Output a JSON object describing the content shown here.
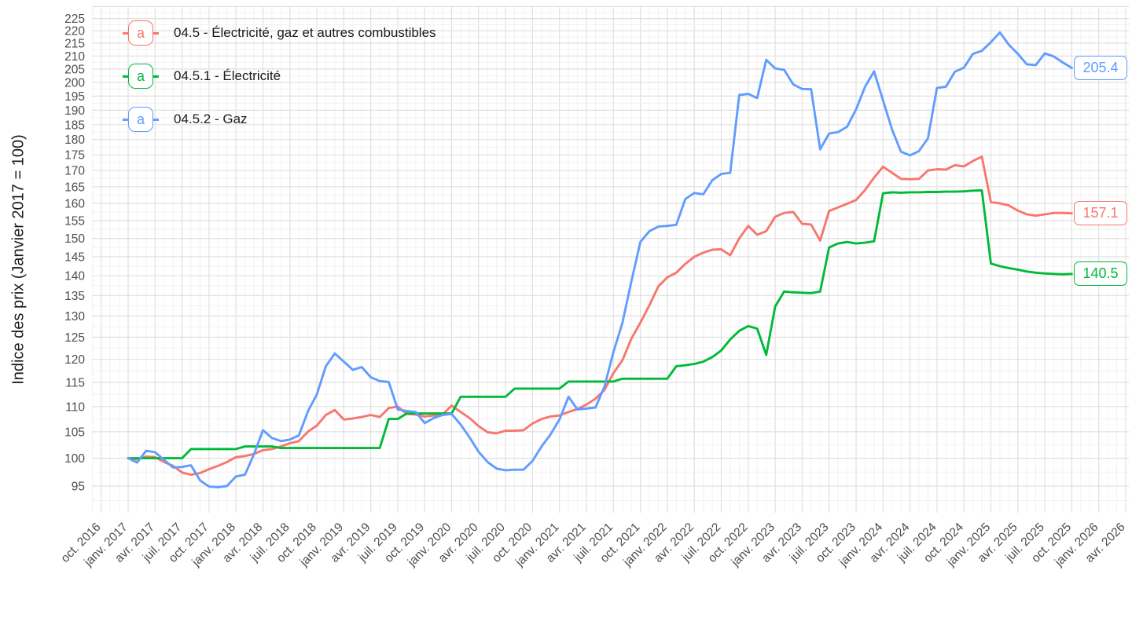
{
  "chart_data": {
    "type": "line",
    "y_scale": "log",
    "grid": "on",
    "legend_position": "top-left-inside",
    "legend_key_letter": "a",
    "ylabel": "Indice des prix (Janvier 2017 = 100)",
    "y_ticks": [
      95,
      100,
      105,
      110,
      115,
      120,
      125,
      130,
      135,
      140,
      145,
      150,
      155,
      160,
      165,
      170,
      175,
      180,
      185,
      190,
      195,
      200,
      205,
      210,
      215,
      220,
      225
    ],
    "ylim": [
      90.6,
      228
    ],
    "x_tick_labels": [
      "oct. 2016",
      "janv. 2017",
      "avr. 2017",
      "juil. 2017",
      "oct. 2017",
      "janv. 2018",
      "avr. 2018",
      "juil. 2018",
      "oct. 2018",
      "janv. 2019",
      "avr. 2019",
      "juil. 2019",
      "oct. 2019",
      "janv. 2020",
      "avr. 2020",
      "juil. 2020",
      "oct. 2020",
      "janv. 2021",
      "avr. 2021",
      "juil. 2021",
      "oct. 2021",
      "janv. 2022",
      "avr. 2022",
      "juil. 2022",
      "oct. 2022",
      "janv. 2023",
      "avr. 2023",
      "juil. 2023",
      "oct. 2023",
      "janv. 2024",
      "avr. 2024",
      "juil. 2024",
      "oct. 2024",
      "janv. 2025",
      "avr. 2025",
      "juil. 2025",
      "oct. 2025",
      "janv. 2026",
      "avr. 2026"
    ],
    "x_axis_note": "ticks quarterly; minor gridlines monthly; data monthly from janv. 2017 to oct. 2025",
    "data_start_month_offset": 3,
    "series": [
      {
        "id": "ipc-04-5",
        "label": "04.5 - Électricité, gaz et autres combustibles",
        "color": "#F8766D",
        "end_label": "157.1",
        "values": [
          100,
          99.8,
          100.3,
          100.2,
          99.3,
          98.6,
          97.4,
          97,
          97.3,
          98,
          98.6,
          99.3,
          100.2,
          100.4,
          100.8,
          101.5,
          101.7,
          102.2,
          102.8,
          103.2,
          105,
          106.2,
          108.3,
          109.3,
          107.4,
          107.6,
          107.9,
          108.3,
          107.9,
          109.7,
          110,
          108.5,
          108.4,
          108,
          108.2,
          108.4,
          110.2,
          108.9,
          107.7,
          106.1,
          104.9,
          104.7,
          105.2,
          105.2,
          105.3,
          106.6,
          107.5,
          108,
          108.2,
          108.9,
          109.5,
          110.4,
          111.6,
          113.4,
          117,
          119.8,
          124.7,
          128.4,
          132.6,
          137.3,
          139.6,
          140.8,
          143.1,
          145,
          146.1,
          146.9,
          147,
          145.4,
          150,
          153.5,
          151,
          152,
          156.1,
          157.2,
          157.5,
          154.1,
          153.9,
          149.4,
          157.8,
          158.8,
          159.9,
          161,
          164,
          167.8,
          171.2,
          169.3,
          167.4,
          167.3,
          167.4,
          170,
          170.4,
          170.3,
          171.7,
          171.3,
          173,
          174.4,
          160.4,
          160,
          159.4,
          157.9,
          156.8,
          156.4,
          156.8,
          157.2,
          157.2,
          157.1
        ]
      },
      {
        "id": "ipc-04-5-1",
        "label": "04.5.1 - Électricité",
        "color": "#00BA38",
        "end_label": "140.5",
        "values": [
          100,
          100,
          100,
          100,
          100,
          100,
          100,
          101.7,
          101.7,
          101.7,
          101.7,
          101.7,
          101.7,
          102.2,
          102.2,
          102.2,
          102.2,
          101.9,
          101.9,
          101.9,
          101.9,
          101.9,
          101.9,
          101.9,
          101.9,
          101.9,
          101.9,
          101.9,
          101.9,
          107.5,
          107.5,
          108.6,
          108.6,
          108.6,
          108.6,
          108.6,
          108.6,
          112,
          112,
          112,
          112,
          112,
          112,
          113.7,
          113.7,
          113.7,
          113.7,
          113.7,
          113.7,
          115.2,
          115.2,
          115.2,
          115.2,
          115.2,
          115.2,
          115.8,
          115.8,
          115.8,
          115.8,
          115.8,
          115.8,
          118.5,
          118.7,
          119,
          119.5,
          120.5,
          122,
          124.5,
          126.5,
          127.6,
          127,
          121,
          132.3,
          136,
          135.8,
          135.7,
          135.6,
          136,
          147.5,
          148.6,
          149,
          148.6,
          148.8,
          149.2,
          163,
          163.3,
          163.2,
          163.3,
          163.3,
          163.4,
          163.4,
          163.5,
          163.5,
          163.6,
          163.8,
          163.9,
          143.2,
          142.5,
          142,
          141.6,
          141.1,
          140.8,
          140.6,
          140.5,
          140.4,
          140.5
        ]
      },
      {
        "id": "ipc-04-5-2",
        "label": "04.5.2 - Gaz",
        "color": "#619CFF",
        "end_label": "205.4",
        "values": [
          100,
          99.2,
          101.4,
          101.1,
          99.7,
          98.3,
          98.4,
          98.7,
          96,
          94.9,
          94.8,
          95,
          96.7,
          97,
          100.7,
          105.3,
          103.8,
          103.2,
          103.5,
          104.3,
          109,
          112.5,
          118.5,
          121.3,
          119.5,
          117.7,
          118.3,
          116.1,
          115.3,
          115.1,
          109.4,
          109.1,
          108.9,
          106.7,
          107.7,
          108.3,
          108.5,
          106.4,
          103.9,
          101.2,
          99.3,
          98.1,
          97.8,
          97.9,
          97.9,
          99.5,
          102.2,
          104.5,
          107.4,
          112,
          109.4,
          109.6,
          109.8,
          114.1,
          121.6,
          128.4,
          138.6,
          149,
          152,
          153.3,
          153.5,
          153.8,
          161.3,
          163.1,
          162.7,
          167,
          168.9,
          169.3,
          195.4,
          195.8,
          194.3,
          208.5,
          205.2,
          204.7,
          199.3,
          197.6,
          197.5,
          176.8,
          182,
          182.5,
          184.3,
          190.3,
          198.4,
          204.1,
          193.5,
          183.4,
          176,
          174.8,
          176.2,
          180.4,
          198,
          198.4,
          204,
          205.5,
          210.8,
          212,
          215.4,
          219.3,
          214.4,
          210.8,
          206.8,
          206.5,
          211,
          209.8,
          207.5,
          205.4
        ]
      }
    ]
  }
}
